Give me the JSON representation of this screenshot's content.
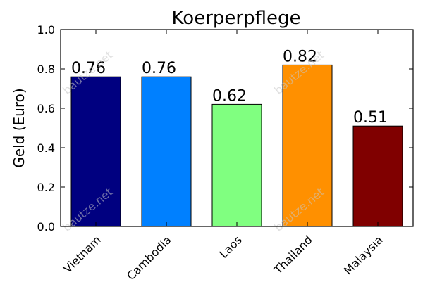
{
  "chart_data": {
    "type": "bar",
    "title": "Koerperpflege",
    "xlabel": "",
    "ylabel": "Geld (Euro)",
    "categories": [
      "Vietnam",
      "Cambodia",
      "Laos",
      "Thailand",
      "Malaysia"
    ],
    "values": [
      0.76,
      0.76,
      0.62,
      0.82,
      0.51
    ],
    "data_labels": [
      "0.76",
      "0.76",
      "0.62",
      "0.82",
      "0.51"
    ],
    "colors": [
      "#000080",
      "#0080ff",
      "#80ff80",
      "#ff9000",
      "#800000"
    ],
    "ylim": [
      0,
      1.0
    ],
    "yticks": [
      0.0,
      0.2,
      0.4,
      0.6,
      0.8,
      1.0
    ],
    "ytick_labels": [
      "0.0",
      "0.2",
      "0.4",
      "0.6",
      "0.8",
      "1.0"
    ],
    "grid": false,
    "legend": "none"
  },
  "watermark": "bautze.net"
}
